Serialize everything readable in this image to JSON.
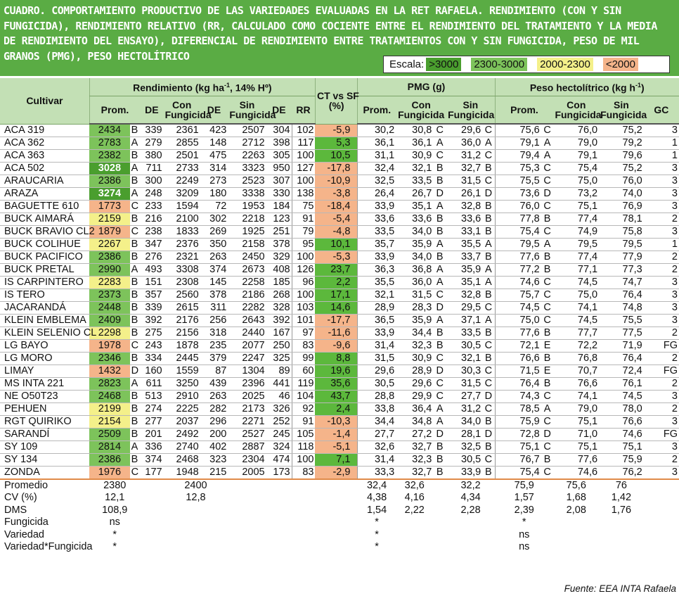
{
  "title": "CUADRO. COMPORTAMIENTO PRODUCTIVO DE LAS VARIEDADES EVALUADAS EN LA RET RAFAELA. RENDIMIENTO (CON Y SIN FUNGICIDA), RENDIMIENTO RELATIVO (RR, CALCULADO COMO COCIENTE ENTRE EL RENDIMIENTO DEL TRATAMIENTO Y LA MEDIA DE RENDIMIENTO DEL ENSAYO), DIFERENCIAL DE RENDIMIENTO ENTRE TRATAMIENTOS CON Y SIN FUNGICIDA, PESO DE MIL GRANOS (PMG), PESO HECTOLÍTRICO",
  "legend": {
    "label": "Escala:",
    "items": [
      {
        "text": ">3000",
        "color": "#4a9e2e"
      },
      {
        "text": "2300-3000",
        "color": "#7dc35b"
      },
      {
        "text": "2000-2300",
        "color": "#f4f08a"
      },
      {
        "text": "<2000",
        "color": "#f5b48a"
      }
    ]
  },
  "colors": {
    "ct_positive": "#5cb83c",
    "ct_negative": "#f5b48a"
  },
  "headers": {
    "cultivar": "Cultivar",
    "rendimiento": "Rendimiento (kg ha",
    "rendimiento_sup": "-1",
    "rendimiento_tail": ", 14% Hº)",
    "ct_vs_sf": "CT vs SF",
    "ct_pct": "(%)",
    "pmg": "PMG (g)",
    "peso_hl": "Peso hectolítrico (kg h",
    "peso_hl_sup": "-1",
    "peso_hl_tail": ")",
    "prom": "Prom.",
    "de": "DE",
    "con": "Con",
    "sin": "Sin",
    "fungicida": "Fungicida",
    "rr": "RR",
    "gc": "GC"
  },
  "rows": [
    {
      "cultivar": "ACA 319",
      "prom": "2434",
      "l1": "B",
      "de": "339",
      "con": "2361",
      "de_con": "423",
      "sin": "2507",
      "de_sin": "304",
      "rr": "102",
      "ct": "-5,9",
      "pmg": "30,2",
      "pmg_con": "30,8",
      "l2": "C",
      "pmg_sin": "29,6",
      "l3": "C",
      "ph": "75,6",
      "l4": "C",
      "ph_con": "76,0",
      "ph_sin": "75,2",
      "gc": "3"
    },
    {
      "cultivar": "ACA 362",
      "prom": "2783",
      "l1": "A",
      "de": "279",
      "con": "2855",
      "de_con": "148",
      "sin": "2712",
      "de_sin": "398",
      "rr": "117",
      "ct": "5,3",
      "pmg": "36,1",
      "pmg_con": "36,1",
      "l2": "A",
      "pmg_sin": "36,0",
      "l3": "A",
      "ph": "79,1",
      "l4": "A",
      "ph_con": "79,0",
      "ph_sin": "79,2",
      "gc": "1"
    },
    {
      "cultivar": "ACA 363",
      "prom": "2382",
      "l1": "B",
      "de": "380",
      "con": "2501",
      "de_con": "475",
      "sin": "2263",
      "de_sin": "305",
      "rr": "100",
      "ct": "10,5",
      "pmg": "31,1",
      "pmg_con": "30,9",
      "l2": "C",
      "pmg_sin": "31,2",
      "l3": "C",
      "ph": "79,4",
      "l4": "A",
      "ph_con": "79,1",
      "ph_sin": "79,6",
      "gc": "1"
    },
    {
      "cultivar": "ACA 502",
      "prom": "3028",
      "l1": "A",
      "de": "711",
      "con": "2733",
      "de_con": "314",
      "sin": "3323",
      "de_sin": "950",
      "rr": "127",
      "ct": "-17,8",
      "pmg": "32,4",
      "pmg_con": "32,1",
      "l2": "B",
      "pmg_sin": "32,7",
      "l3": "B",
      "ph": "75,3",
      "l4": "C",
      "ph_con": "75,4",
      "ph_sin": "75,2",
      "gc": "3"
    },
    {
      "cultivar": "ARAUCARIA",
      "prom": "2386",
      "l1": "B",
      "de": "300",
      "con": "2249",
      "de_con": "273",
      "sin": "2523",
      "de_sin": "307",
      "rr": "100",
      "ct": "-10,9",
      "pmg": "32,5",
      "pmg_con": "33,5",
      "l2": "B",
      "pmg_sin": "31,5",
      "l3": "C",
      "ph": "75,5",
      "l4": "C",
      "ph_con": "75,0",
      "ph_sin": "76,0",
      "gc": "3"
    },
    {
      "cultivar": "ARAZA",
      "prom": "3274",
      "l1": "A",
      "de": "248",
      "con": "3209",
      "de_con": "180",
      "sin": "3338",
      "de_sin": "330",
      "rr": "138",
      "ct": "-3,8",
      "pmg": "26,4",
      "pmg_con": "26,7",
      "l2": "D",
      "pmg_sin": "26,1",
      "l3": "D",
      "ph": "73,6",
      "l4": "D",
      "ph_con": "73,2",
      "ph_sin": "74,0",
      "gc": "3"
    },
    {
      "cultivar": "BAGUETTE 610",
      "prom": "1773",
      "l1": "C",
      "de": "233",
      "con": "1594",
      "de_con": "72",
      "sin": "1953",
      "de_sin": "184",
      "rr": "75",
      "ct": "-18,4",
      "pmg": "33,9",
      "pmg_con": "35,1",
      "l2": "A",
      "pmg_sin": "32,8",
      "l3": "B",
      "ph": "76,0",
      "l4": "C",
      "ph_con": "75,1",
      "ph_sin": "76,9",
      "gc": "3"
    },
    {
      "cultivar": "BUCK AIMARÁ",
      "prom": "2159",
      "l1": "B",
      "de": "216",
      "con": "2100",
      "de_con": "302",
      "sin": "2218",
      "de_sin": "123",
      "rr": "91",
      "ct": "-5,4",
      "pmg": "33,6",
      "pmg_con": "33,6",
      "l2": "B",
      "pmg_sin": "33,6",
      "l3": "B",
      "ph": "77,8",
      "l4": "B",
      "ph_con": "77,4",
      "ph_sin": "78,1",
      "gc": "2"
    },
    {
      "cultivar": "BUCK BRAVIO CL2",
      "prom": "1879",
      "l1": "C",
      "de": "238",
      "con": "1833",
      "de_con": "269",
      "sin": "1925",
      "de_sin": "251",
      "rr": "79",
      "ct": "-4,8",
      "pmg": "33,5",
      "pmg_con": "34,0",
      "l2": "B",
      "pmg_sin": "33,1",
      "l3": "B",
      "ph": "75,4",
      "l4": "C",
      "ph_con": "74,9",
      "ph_sin": "75,8",
      "gc": "3"
    },
    {
      "cultivar": "BUCK COLIHUE",
      "prom": "2267",
      "l1": "B",
      "de": "347",
      "con": "2376",
      "de_con": "350",
      "sin": "2158",
      "de_sin": "378",
      "rr": "95",
      "ct": "10,1",
      "pmg": "35,7",
      "pmg_con": "35,9",
      "l2": "A",
      "pmg_sin": "35,5",
      "l3": "A",
      "ph": "79,5",
      "l4": "A",
      "ph_con": "79,5",
      "ph_sin": "79,5",
      "gc": "1"
    },
    {
      "cultivar": "BUCK PACIFICO",
      "prom": "2386",
      "l1": "B",
      "de": "276",
      "con": "2321",
      "de_con": "263",
      "sin": "2450",
      "de_sin": "329",
      "rr": "100",
      "ct": "-5,3",
      "pmg": "33,9",
      "pmg_con": "34,0",
      "l2": "B",
      "pmg_sin": "33,7",
      "l3": "B",
      "ph": "77,6",
      "l4": "B",
      "ph_con": "77,4",
      "ph_sin": "77,9",
      "gc": "2"
    },
    {
      "cultivar": "BUCK PRETAL",
      "prom": "2990",
      "l1": "A",
      "de": "493",
      "con": "3308",
      "de_con": "374",
      "sin": "2673",
      "de_sin": "408",
      "rr": "126",
      "ct": "23,7",
      "pmg": "36,3",
      "pmg_con": "36,8",
      "l2": "A",
      "pmg_sin": "35,9",
      "l3": "A",
      "ph": "77,2",
      "l4": "B",
      "ph_con": "77,1",
      "ph_sin": "77,3",
      "gc": "2"
    },
    {
      "cultivar": "IS CARPINTERO",
      "prom": "2283",
      "l1": "B",
      "de": "151",
      "con": "2308",
      "de_con": "145",
      "sin": "2258",
      "de_sin": "185",
      "rr": "96",
      "ct": "2,2",
      "pmg": "35,5",
      "pmg_con": "36,0",
      "l2": "A",
      "pmg_sin": "35,1",
      "l3": "A",
      "ph": "74,6",
      "l4": "C",
      "ph_con": "74,5",
      "ph_sin": "74,7",
      "gc": "3"
    },
    {
      "cultivar": "IS TERO",
      "prom": "2373",
      "l1": "B",
      "de": "357",
      "con": "2560",
      "de_con": "378",
      "sin": "2186",
      "de_sin": "268",
      "rr": "100",
      "ct": "17,1",
      "pmg": "32,1",
      "pmg_con": "31,5",
      "l2": "C",
      "pmg_sin": "32,8",
      "l3": "B",
      "ph": "75,7",
      "l4": "C",
      "ph_con": "75,0",
      "ph_sin": "76,4",
      "gc": "3"
    },
    {
      "cultivar": "JACARANDÁ",
      "prom": "2448",
      "l1": "B",
      "de": "339",
      "con": "2615",
      "de_con": "311",
      "sin": "2282",
      "de_sin": "328",
      "rr": "103",
      "ct": "14,6",
      "pmg": "28,9",
      "pmg_con": "28,3",
      "l2": "D",
      "pmg_sin": "29,5",
      "l3": "C",
      "ph": "74,5",
      "l4": "C",
      "ph_con": "74,1",
      "ph_sin": "74,8",
      "gc": "3"
    },
    {
      "cultivar": "KLEIN EMBLEMA",
      "prom": "2409",
      "l1": "B",
      "de": "392",
      "con": "2176",
      "de_con": "256",
      "sin": "2643",
      "de_sin": "392",
      "rr": "101",
      "ct": "-17,7",
      "pmg": "36,5",
      "pmg_con": "35,9",
      "l2": "A",
      "pmg_sin": "37,1",
      "l3": "A",
      "ph": "75,0",
      "l4": "C",
      "ph_con": "74,5",
      "ph_sin": "75,5",
      "gc": "3"
    },
    {
      "cultivar": "KLEIN SELENIO CL",
      "prom": "2298",
      "l1": "B",
      "de": "275",
      "con": "2156",
      "de_con": "318",
      "sin": "2440",
      "de_sin": "167",
      "rr": "97",
      "ct": "-11,6",
      "pmg": "33,9",
      "pmg_con": "34,4",
      "l2": "B",
      "pmg_sin": "33,5",
      "l3": "B",
      "ph": "77,6",
      "l4": "B",
      "ph_con": "77,7",
      "ph_sin": "77,5",
      "gc": "2"
    },
    {
      "cultivar": "LG BAYO",
      "prom": "1978",
      "l1": "C",
      "de": "243",
      "con": "1878",
      "de_con": "235",
      "sin": "2077",
      "de_sin": "250",
      "rr": "83",
      "ct": "-9,6",
      "pmg": "31,4",
      "pmg_con": "32,3",
      "l2": "B",
      "pmg_sin": "30,5",
      "l3": "C",
      "ph": "72,1",
      "l4": "E",
      "ph_con": "72,2",
      "ph_sin": "71,9",
      "gc": "FG"
    },
    {
      "cultivar": "LG MORO",
      "prom": "2346",
      "l1": "B",
      "de": "334",
      "con": "2445",
      "de_con": "379",
      "sin": "2247",
      "de_sin": "325",
      "rr": "99",
      "ct": "8,8",
      "pmg": "31,5",
      "pmg_con": "30,9",
      "l2": "C",
      "pmg_sin": "32,1",
      "l3": "B",
      "ph": "76,6",
      "l4": "B",
      "ph_con": "76,8",
      "ph_sin": "76,4",
      "gc": "2"
    },
    {
      "cultivar": "LIMAY",
      "prom": "1432",
      "l1": "D",
      "de": "160",
      "con": "1559",
      "de_con": "87",
      "sin": "1304",
      "de_sin": "89",
      "rr": "60",
      "ct": "19,6",
      "pmg": "29,6",
      "pmg_con": "28,9",
      "l2": "D",
      "pmg_sin": "30,3",
      "l3": "C",
      "ph": "71,5",
      "l4": "E",
      "ph_con": "70,7",
      "ph_sin": "72,4",
      "gc": "FG"
    },
    {
      "cultivar": "MS INTA 221",
      "prom": "2823",
      "l1": "A",
      "de": "611",
      "con": "3250",
      "de_con": "439",
      "sin": "2396",
      "de_sin": "441",
      "rr": "119",
      "ct": "35,6",
      "pmg": "30,5",
      "pmg_con": "29,6",
      "l2": "C",
      "pmg_sin": "31,5",
      "l3": "C",
      "ph": "76,4",
      "l4": "B",
      "ph_con": "76,6",
      "ph_sin": "76,1",
      "gc": "2"
    },
    {
      "cultivar": "NE O50T23",
      "prom": "2468",
      "l1": "B",
      "de": "513",
      "con": "2910",
      "de_con": "263",
      "sin": "2025",
      "de_sin": "46",
      "rr": "104",
      "ct": "43,7",
      "pmg": "28,8",
      "pmg_con": "29,9",
      "l2": "C",
      "pmg_sin": "27,7",
      "l3": "D",
      "ph": "74,3",
      "l4": "C",
      "ph_con": "74,1",
      "ph_sin": "74,5",
      "gc": "3"
    },
    {
      "cultivar": "PEHUEN",
      "prom": "2199",
      "l1": "B",
      "de": "274",
      "con": "2225",
      "de_con": "282",
      "sin": "2173",
      "de_sin": "326",
      "rr": "92",
      "ct": "2,4",
      "pmg": "33,8",
      "pmg_con": "36,4",
      "l2": "A",
      "pmg_sin": "31,2",
      "l3": "C",
      "ph": "78,5",
      "l4": "A",
      "ph_con": "79,0",
      "ph_sin": "78,0",
      "gc": "2"
    },
    {
      "cultivar": "RGT QUIRIKO",
      "prom": "2154",
      "l1": "B",
      "de": "277",
      "con": "2037",
      "de_con": "296",
      "sin": "2271",
      "de_sin": "252",
      "rr": "91",
      "ct": "-10,3",
      "pmg": "34,4",
      "pmg_con": "34,8",
      "l2": "A",
      "pmg_sin": "34,0",
      "l3": "B",
      "ph": "75,9",
      "l4": "C",
      "ph_con": "75,1",
      "ph_sin": "76,6",
      "gc": "3"
    },
    {
      "cultivar": "SARANDÍ",
      "prom": "2509",
      "l1": "B",
      "de": "201",
      "con": "2492",
      "de_con": "200",
      "sin": "2527",
      "de_sin": "245",
      "rr": "105",
      "ct": "-1,4",
      "pmg": "27,7",
      "pmg_con": "27,2",
      "l2": "D",
      "pmg_sin": "28,1",
      "l3": "D",
      "ph": "72,8",
      "l4": "D",
      "ph_con": "71,0",
      "ph_sin": "74,6",
      "gc": "FG"
    },
    {
      "cultivar": "SY 109",
      "prom": "2814",
      "l1": "A",
      "de": "336",
      "con": "2740",
      "de_con": "402",
      "sin": "2887",
      "de_sin": "324",
      "rr": "118",
      "ct": "-5,1",
      "pmg": "32,6",
      "pmg_con": "32,7",
      "l2": "B",
      "pmg_sin": "32,5",
      "l3": "B",
      "ph": "75,1",
      "l4": "C",
      "ph_con": "75,1",
      "ph_sin": "75,1",
      "gc": "3"
    },
    {
      "cultivar": "SY 134",
      "prom": "2386",
      "l1": "B",
      "de": "374",
      "con": "2468",
      "de_con": "323",
      "sin": "2304",
      "de_sin": "474",
      "rr": "100",
      "ct": "7,1",
      "pmg": "31,4",
      "pmg_con": "32,3",
      "l2": "B",
      "pmg_sin": "30,5",
      "l3": "C",
      "ph": "76,7",
      "l4": "B",
      "ph_con": "77,6",
      "ph_sin": "75,9",
      "gc": "2"
    },
    {
      "cultivar": "ZONDA",
      "prom": "1976",
      "l1": "C",
      "de": "177",
      "con": "1948",
      "de_con": "215",
      "sin": "2005",
      "de_sin": "173",
      "rr": "83",
      "ct": "-2,9",
      "pmg": "33,3",
      "pmg_con": "32,7",
      "l2": "B",
      "pmg_sin": "33,9",
      "l3": "B",
      "ph": "75,4",
      "l4": "C",
      "ph_con": "74,6",
      "ph_sin": "76,2",
      "gc": "3"
    }
  ],
  "stats": [
    {
      "label": "Promedio",
      "prom": "2380",
      "con": "2400",
      "pmg": "32,4",
      "pmg_con": "32,6",
      "pmg_sin": "32,2",
      "ph": "75,9",
      "ph_con": "75,6",
      "ph_sin": "76"
    },
    {
      "label": "CV (%)",
      "prom": "12,1",
      "con": "12,8",
      "pmg": "4,38",
      "pmg_con": "4,16",
      "pmg_sin": "4,34",
      "ph": "1,57",
      "ph_con": "1,68",
      "ph_sin": "1,42"
    },
    {
      "label": "DMS",
      "prom": "108,9",
      "con": "",
      "pmg": "1,54",
      "pmg_con": "2,22",
      "pmg_sin": "2,28",
      "ph": "2,39",
      "ph_con": "2,08",
      "ph_sin": "1,76"
    },
    {
      "label": "Fungicida",
      "prom": "ns",
      "con": "",
      "pmg": "*",
      "pmg_con": "",
      "pmg_sin": "",
      "ph": "*",
      "ph_con": "",
      "ph_sin": ""
    },
    {
      "label": "Variedad",
      "prom": "*",
      "con": "",
      "pmg": "*",
      "pmg_con": "",
      "pmg_sin": "",
      "ph": "ns",
      "ph_con": "",
      "ph_sin": ""
    },
    {
      "label": "Variedad*Fungicida",
      "prom": "*",
      "con": "",
      "pmg": "*",
      "pmg_con": "",
      "pmg_sin": "",
      "ph": "ns",
      "ph_con": "",
      "ph_sin": ""
    }
  ],
  "source": "Fuente: EEA INTA Rafaela"
}
